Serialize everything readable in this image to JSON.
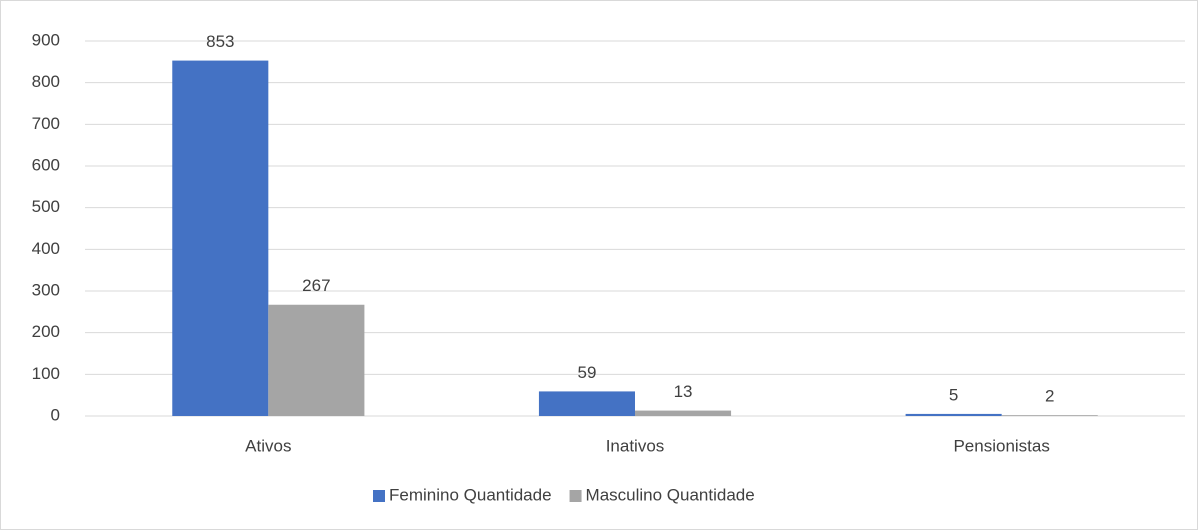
{
  "chart_data": {
    "type": "bar",
    "categories": [
      "Ativos",
      "Inativos",
      "Pensionistas"
    ],
    "series": [
      {
        "name": "Feminino Quantidade",
        "color": "#4472c4",
        "values": [
          853,
          59,
          5
        ]
      },
      {
        "name": "Masculino Quantidade",
        "color": "#a5a5a5",
        "values": [
          267,
          13,
          2
        ]
      }
    ],
    "ylim": [
      0,
      900
    ],
    "yticks": [
      0,
      100,
      200,
      300,
      400,
      500,
      600,
      700,
      800,
      900
    ],
    "grid": true,
    "legend": "bottom",
    "data_labels": true
  }
}
